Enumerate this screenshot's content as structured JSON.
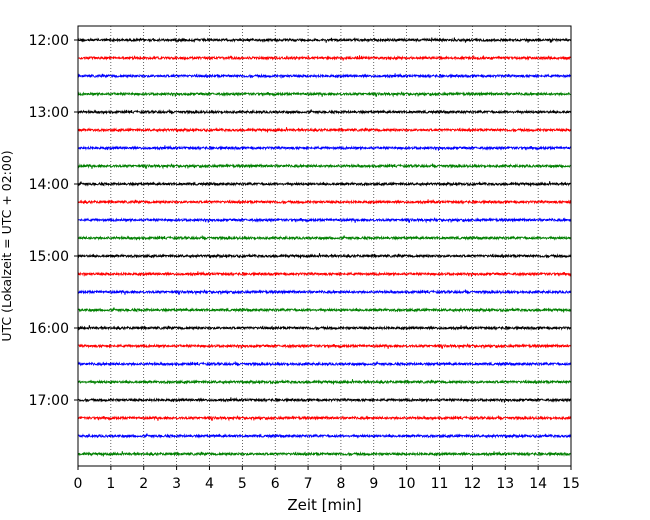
{
  "chart_data": {
    "type": "line",
    "subtype": "helicorder",
    "title": "",
    "xlabel": "Zeit  [min]",
    "ylabel": "UTC (Lokalzeit = UTC + 02:00)",
    "xlim": [
      0,
      15
    ],
    "x_ticks": [
      "0",
      "1",
      "2",
      "3",
      "4",
      "5",
      "6",
      "7",
      "8",
      "9",
      "10",
      "11",
      "12",
      "13",
      "14",
      "15"
    ],
    "y_ticks": [
      "12:00",
      "13:00",
      "14:00",
      "15:00",
      "16:00",
      "17:00"
    ],
    "grid": "vertical dotted lines at each minute",
    "trace_colors": [
      "#000000",
      "#ff0000",
      "#0000ff",
      "#008000"
    ],
    "trace_minutes_per_row": 15,
    "trace_start_times": [
      "12:00",
      "12:15",
      "12:30",
      "12:45",
      "13:00",
      "13:15",
      "13:30",
      "13:45",
      "14:00",
      "14:15",
      "14:30",
      "14:45",
      "15:00",
      "15:15",
      "15:30",
      "15:45",
      "16:00",
      "16:15",
      "16:30",
      "16:45",
      "17:00",
      "17:15",
      "17:30",
      "17:45"
    ]
  }
}
